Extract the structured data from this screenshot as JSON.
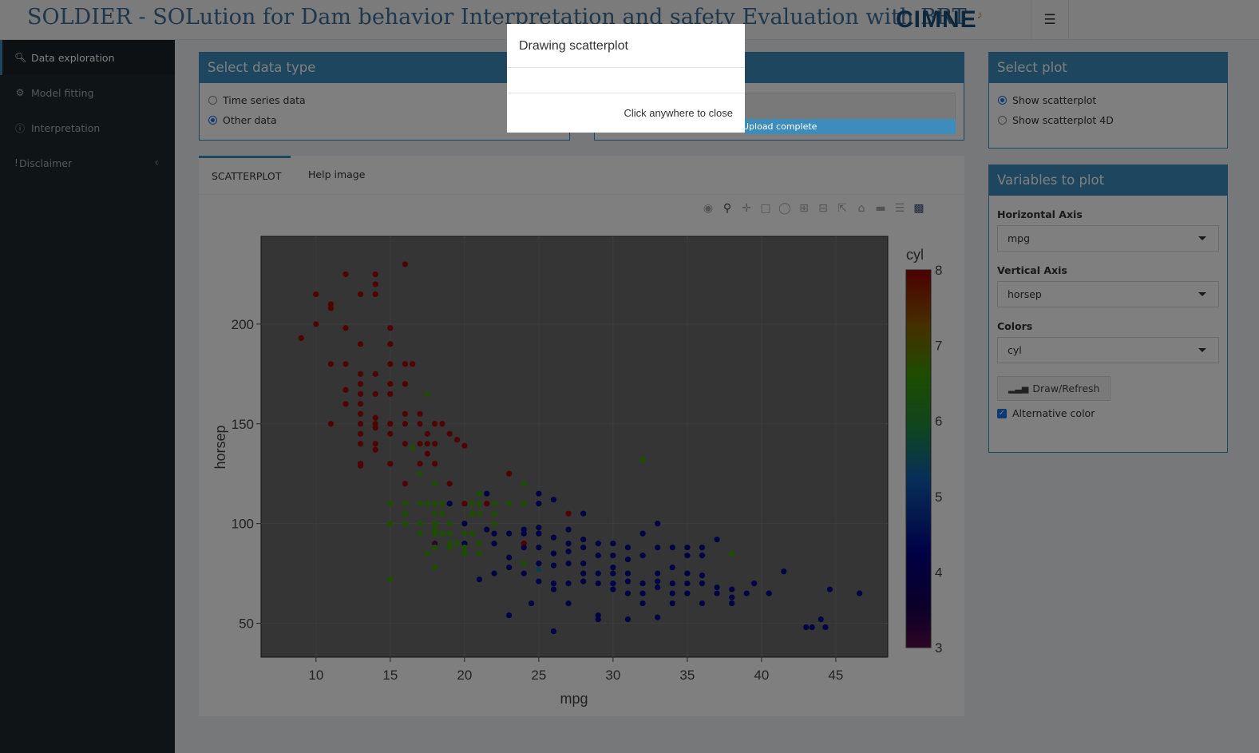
{
  "header": {
    "title": "SOLDIER - SOLution for Dam behavior Interpretation and safety Evaluation with BRT",
    "logo_text": "CIMNE"
  },
  "sidebar": {
    "items": [
      {
        "label": "Data exploration",
        "icon": "search-icon",
        "active": true
      },
      {
        "label": "Model fitting",
        "icon": "gear-icon",
        "active": false
      },
      {
        "label": "Interpretation",
        "icon": "info-icon",
        "active": false
      },
      {
        "label": "Disclaimer",
        "icon": "exclamation-icon",
        "active": false
      }
    ]
  },
  "data_type_box": {
    "title": "Select data type",
    "options": [
      "Time series data",
      "Other data"
    ],
    "selected": "Other data"
  },
  "upload": {
    "status": "Upload complete"
  },
  "tabs": [
    "SCATTERPLOT",
    "Help image"
  ],
  "select_plot_box": {
    "title": "Select plot",
    "options": [
      "Show scatterplot",
      "Show scatterplot 4D"
    ],
    "selected": "Show scatterplot"
  },
  "variables_box": {
    "title": "Variables to plot",
    "horizontal_label": "Horizontal Axis",
    "horizontal_value": "mpg",
    "vertical_label": "Vertical Axis",
    "vertical_value": "horsep",
    "colors_label": "Colors",
    "colors_value": "cyl",
    "draw_button": "Draw/Refresh",
    "alt_color_label": "Alternative color",
    "alt_color_checked": true
  },
  "modal": {
    "title": "Drawing scatterplot",
    "close_text": "Click anywhere to close"
  },
  "chart_data": {
    "type": "scatter",
    "xlabel": "mpg",
    "ylabel": "horsep",
    "xlim": [
      6.3,
      48.5
    ],
    "ylim": [
      33,
      244
    ],
    "xticks": [
      10,
      15,
      20,
      25,
      30,
      35,
      40,
      45
    ],
    "yticks": [
      50,
      100,
      150,
      200
    ],
    "colorbar": {
      "title": "cyl",
      "ticks": [
        3,
        4,
        5,
        6,
        7,
        8
      ]
    },
    "points": [
      [
        9,
        193,
        8
      ],
      [
        10,
        215,
        8
      ],
      [
        10,
        200,
        8
      ],
      [
        11,
        210,
        8
      ],
      [
        11,
        208,
        8
      ],
      [
        11,
        180,
        8
      ],
      [
        11,
        150,
        8
      ],
      [
        12,
        225,
        8
      ],
      [
        12,
        198,
        8
      ],
      [
        12,
        180,
        8
      ],
      [
        12,
        167,
        8
      ],
      [
        12,
        160,
        8
      ],
      [
        13,
        215,
        8
      ],
      [
        13,
        190,
        8
      ],
      [
        13,
        175,
        8
      ],
      [
        13,
        170,
        8
      ],
      [
        13,
        165,
        8
      ],
      [
        13,
        160,
        8
      ],
      [
        13,
        155,
        8
      ],
      [
        13,
        150,
        8
      ],
      [
        13,
        145,
        8
      ],
      [
        13,
        140,
        8
      ],
      [
        13,
        130,
        8
      ],
      [
        13,
        129,
        8
      ],
      [
        14,
        225,
        8
      ],
      [
        14,
        220,
        8
      ],
      [
        14,
        215,
        8
      ],
      [
        14,
        175,
        8
      ],
      [
        14,
        165,
        8
      ],
      [
        14,
        153,
        8
      ],
      [
        14,
        150,
        8
      ],
      [
        14,
        148,
        8
      ],
      [
        14,
        140,
        8
      ],
      [
        14,
        137,
        8
      ],
      [
        15,
        198,
        8
      ],
      [
        15,
        190,
        8
      ],
      [
        15,
        180,
        8
      ],
      [
        15,
        170,
        8
      ],
      [
        15,
        165,
        8
      ],
      [
        15,
        150,
        8
      ],
      [
        15,
        145,
        8
      ],
      [
        15,
        130,
        8
      ],
      [
        15,
        110,
        6
      ],
      [
        15,
        100,
        6
      ],
      [
        15,
        72,
        6
      ],
      [
        16,
        230,
        8
      ],
      [
        16,
        180,
        8
      ],
      [
        16,
        170,
        8
      ],
      [
        16,
        155,
        8
      ],
      [
        16,
        150,
        8
      ],
      [
        16,
        140,
        8
      ],
      [
        16,
        120,
        8
      ],
      [
        16,
        110,
        6
      ],
      [
        16,
        105,
        6
      ],
      [
        16,
        100,
        6
      ],
      [
        16.5,
        180,
        8
      ],
      [
        16.5,
        138,
        6
      ],
      [
        17,
        155,
        8
      ],
      [
        17,
        150,
        8
      ],
      [
        17,
        140,
        8
      ],
      [
        17,
        130,
        8
      ],
      [
        17,
        125,
        6
      ],
      [
        17,
        110,
        6
      ],
      [
        17,
        100,
        6
      ],
      [
        17,
        95,
        6
      ],
      [
        17.5,
        140,
        8
      ],
      [
        17.5,
        135,
        8
      ],
      [
        17.5,
        145,
        8
      ],
      [
        17.5,
        165,
        6
      ],
      [
        17.5,
        110,
        6
      ],
      [
        17.5,
        85,
        6
      ],
      [
        18,
        150,
        8
      ],
      [
        18,
        140,
        8
      ],
      [
        18,
        130,
        8
      ],
      [
        18,
        120,
        6
      ],
      [
        18,
        110,
        6
      ],
      [
        18,
        105,
        6
      ],
      [
        18,
        100,
        6
      ],
      [
        18,
        97,
        6
      ],
      [
        18,
        95,
        6
      ],
      [
        18,
        90,
        3
      ],
      [
        18,
        88,
        6
      ],
      [
        18,
        78,
        6
      ],
      [
        18.5,
        150,
        8
      ],
      [
        18.5,
        110,
        6
      ],
      [
        18.5,
        105,
        6
      ],
      [
        18.5,
        95,
        6
      ],
      [
        19,
        145,
        8
      ],
      [
        19,
        120,
        8
      ],
      [
        19,
        110,
        4
      ],
      [
        19,
        100,
        6
      ],
      [
        19,
        90,
        6
      ],
      [
        19,
        88,
        6
      ],
      [
        19,
        95,
        6
      ],
      [
        19.5,
        142,
        8
      ],
      [
        19.5,
        90,
        6
      ],
      [
        20,
        139,
        8
      ],
      [
        20,
        110,
        8
      ],
      [
        20,
        100,
        4
      ],
      [
        20,
        90,
        4
      ],
      [
        20,
        88,
        6
      ],
      [
        20,
        85,
        6
      ],
      [
        20,
        95,
        6
      ],
      [
        20.5,
        110,
        6
      ],
      [
        20.5,
        105,
        6
      ],
      [
        20.5,
        95,
        6
      ],
      [
        21,
        115,
        6
      ],
      [
        21,
        110,
        6
      ],
      [
        21,
        105,
        6
      ],
      [
        21,
        90,
        6
      ],
      [
        21,
        85,
        6
      ],
      [
        21,
        72,
        4
      ],
      [
        21.5,
        110,
        8
      ],
      [
        21.5,
        115,
        4
      ],
      [
        21.5,
        97,
        4
      ],
      [
        22,
        110,
        6
      ],
      [
        22,
        105,
        6
      ],
      [
        22,
        100,
        6
      ],
      [
        22,
        95,
        4
      ],
      [
        22,
        90,
        4
      ],
      [
        22,
        75,
        4
      ],
      [
        23,
        125,
        8
      ],
      [
        23,
        110,
        6
      ],
      [
        23,
        95,
        4
      ],
      [
        23,
        83,
        4
      ],
      [
        23,
        78,
        4
      ],
      [
        23,
        54,
        4
      ],
      [
        24,
        120,
        6
      ],
      [
        24,
        110,
        6
      ],
      [
        24,
        97,
        4
      ],
      [
        24,
        90,
        8
      ],
      [
        24,
        88,
        4
      ],
      [
        24,
        75,
        4
      ],
      [
        24,
        80,
        6
      ],
      [
        24,
        95,
        4
      ],
      [
        25,
        115,
        4
      ],
      [
        25,
        110,
        4
      ],
      [
        25,
        98,
        4
      ],
      [
        25,
        95,
        4
      ],
      [
        25,
        88,
        4
      ],
      [
        25,
        80,
        4
      ],
      [
        25,
        71,
        4
      ],
      [
        25,
        77,
        5
      ],
      [
        24.5,
        60,
        4
      ],
      [
        26,
        112,
        4
      ],
      [
        26,
        93,
        4
      ],
      [
        26,
        85,
        4
      ],
      [
        26,
        79,
        4
      ],
      [
        26,
        70,
        4
      ],
      [
        26,
        67,
        4
      ],
      [
        26,
        46,
        4
      ],
      [
        27,
        105,
        8
      ],
      [
        27,
        97,
        4
      ],
      [
        27,
        90,
        4
      ],
      [
        27,
        86,
        4
      ],
      [
        27,
        80,
        4
      ],
      [
        27,
        70,
        4
      ],
      [
        27,
        60,
        4
      ],
      [
        28,
        105,
        4
      ],
      [
        28,
        92,
        4
      ],
      [
        28,
        88,
        4
      ],
      [
        28,
        80,
        4
      ],
      [
        28,
        75,
        4
      ],
      [
        28,
        71,
        4
      ],
      [
        29,
        90,
        4
      ],
      [
        29,
        84,
        4
      ],
      [
        29,
        75,
        4
      ],
      [
        29,
        70,
        4
      ],
      [
        29,
        52,
        4
      ],
      [
        29,
        54,
        4
      ],
      [
        30,
        90,
        4
      ],
      [
        30,
        84,
        4
      ],
      [
        30,
        78,
        4
      ],
      [
        30,
        75,
        4
      ],
      [
        30,
        67,
        4
      ],
      [
        30,
        70,
        4
      ],
      [
        31,
        88,
        4
      ],
      [
        31,
        82,
        4
      ],
      [
        31,
        75,
        4
      ],
      [
        31,
        71,
        4
      ],
      [
        31,
        65,
        4
      ],
      [
        31,
        52,
        4
      ],
      [
        32,
        132,
        6
      ],
      [
        32,
        95,
        4
      ],
      [
        32,
        84,
        4
      ],
      [
        32,
        70,
        4
      ],
      [
        32,
        65,
        4
      ],
      [
        32,
        60,
        4
      ],
      [
        33,
        100,
        4
      ],
      [
        33,
        88,
        4
      ],
      [
        33,
        75,
        4
      ],
      [
        33,
        71,
        4
      ],
      [
        33,
        68,
        4
      ],
      [
        33,
        53,
        4
      ],
      [
        34,
        88,
        4
      ],
      [
        34,
        78,
        4
      ],
      [
        34,
        70,
        4
      ],
      [
        34,
        65,
        4
      ],
      [
        34,
        60,
        4
      ],
      [
        35,
        88,
        4
      ],
      [
        35,
        84,
        4
      ],
      [
        35,
        75,
        4
      ],
      [
        35,
        70,
        4
      ],
      [
        35,
        65,
        4
      ],
      [
        36,
        88,
        4
      ],
      [
        36,
        84,
        4
      ],
      [
        36,
        74,
        4
      ],
      [
        36,
        70,
        4
      ],
      [
        36,
        60,
        4
      ],
      [
        37,
        92,
        4
      ],
      [
        37,
        68,
        4
      ],
      [
        37,
        65,
        4
      ],
      [
        38,
        85,
        6
      ],
      [
        38,
        67,
        4
      ],
      [
        38,
        63,
        4
      ],
      [
        38,
        60,
        4
      ],
      [
        39,
        65,
        4
      ],
      [
        39.5,
        70,
        4
      ],
      [
        40.5,
        65,
        4
      ],
      [
        41.5,
        76,
        4
      ],
      [
        43,
        48,
        4
      ],
      [
        43.4,
        48,
        4
      ],
      [
        44,
        52,
        4
      ],
      [
        44.3,
        48,
        4
      ],
      [
        44.6,
        67,
        4
      ],
      [
        46.6,
        65,
        4
      ]
    ]
  }
}
